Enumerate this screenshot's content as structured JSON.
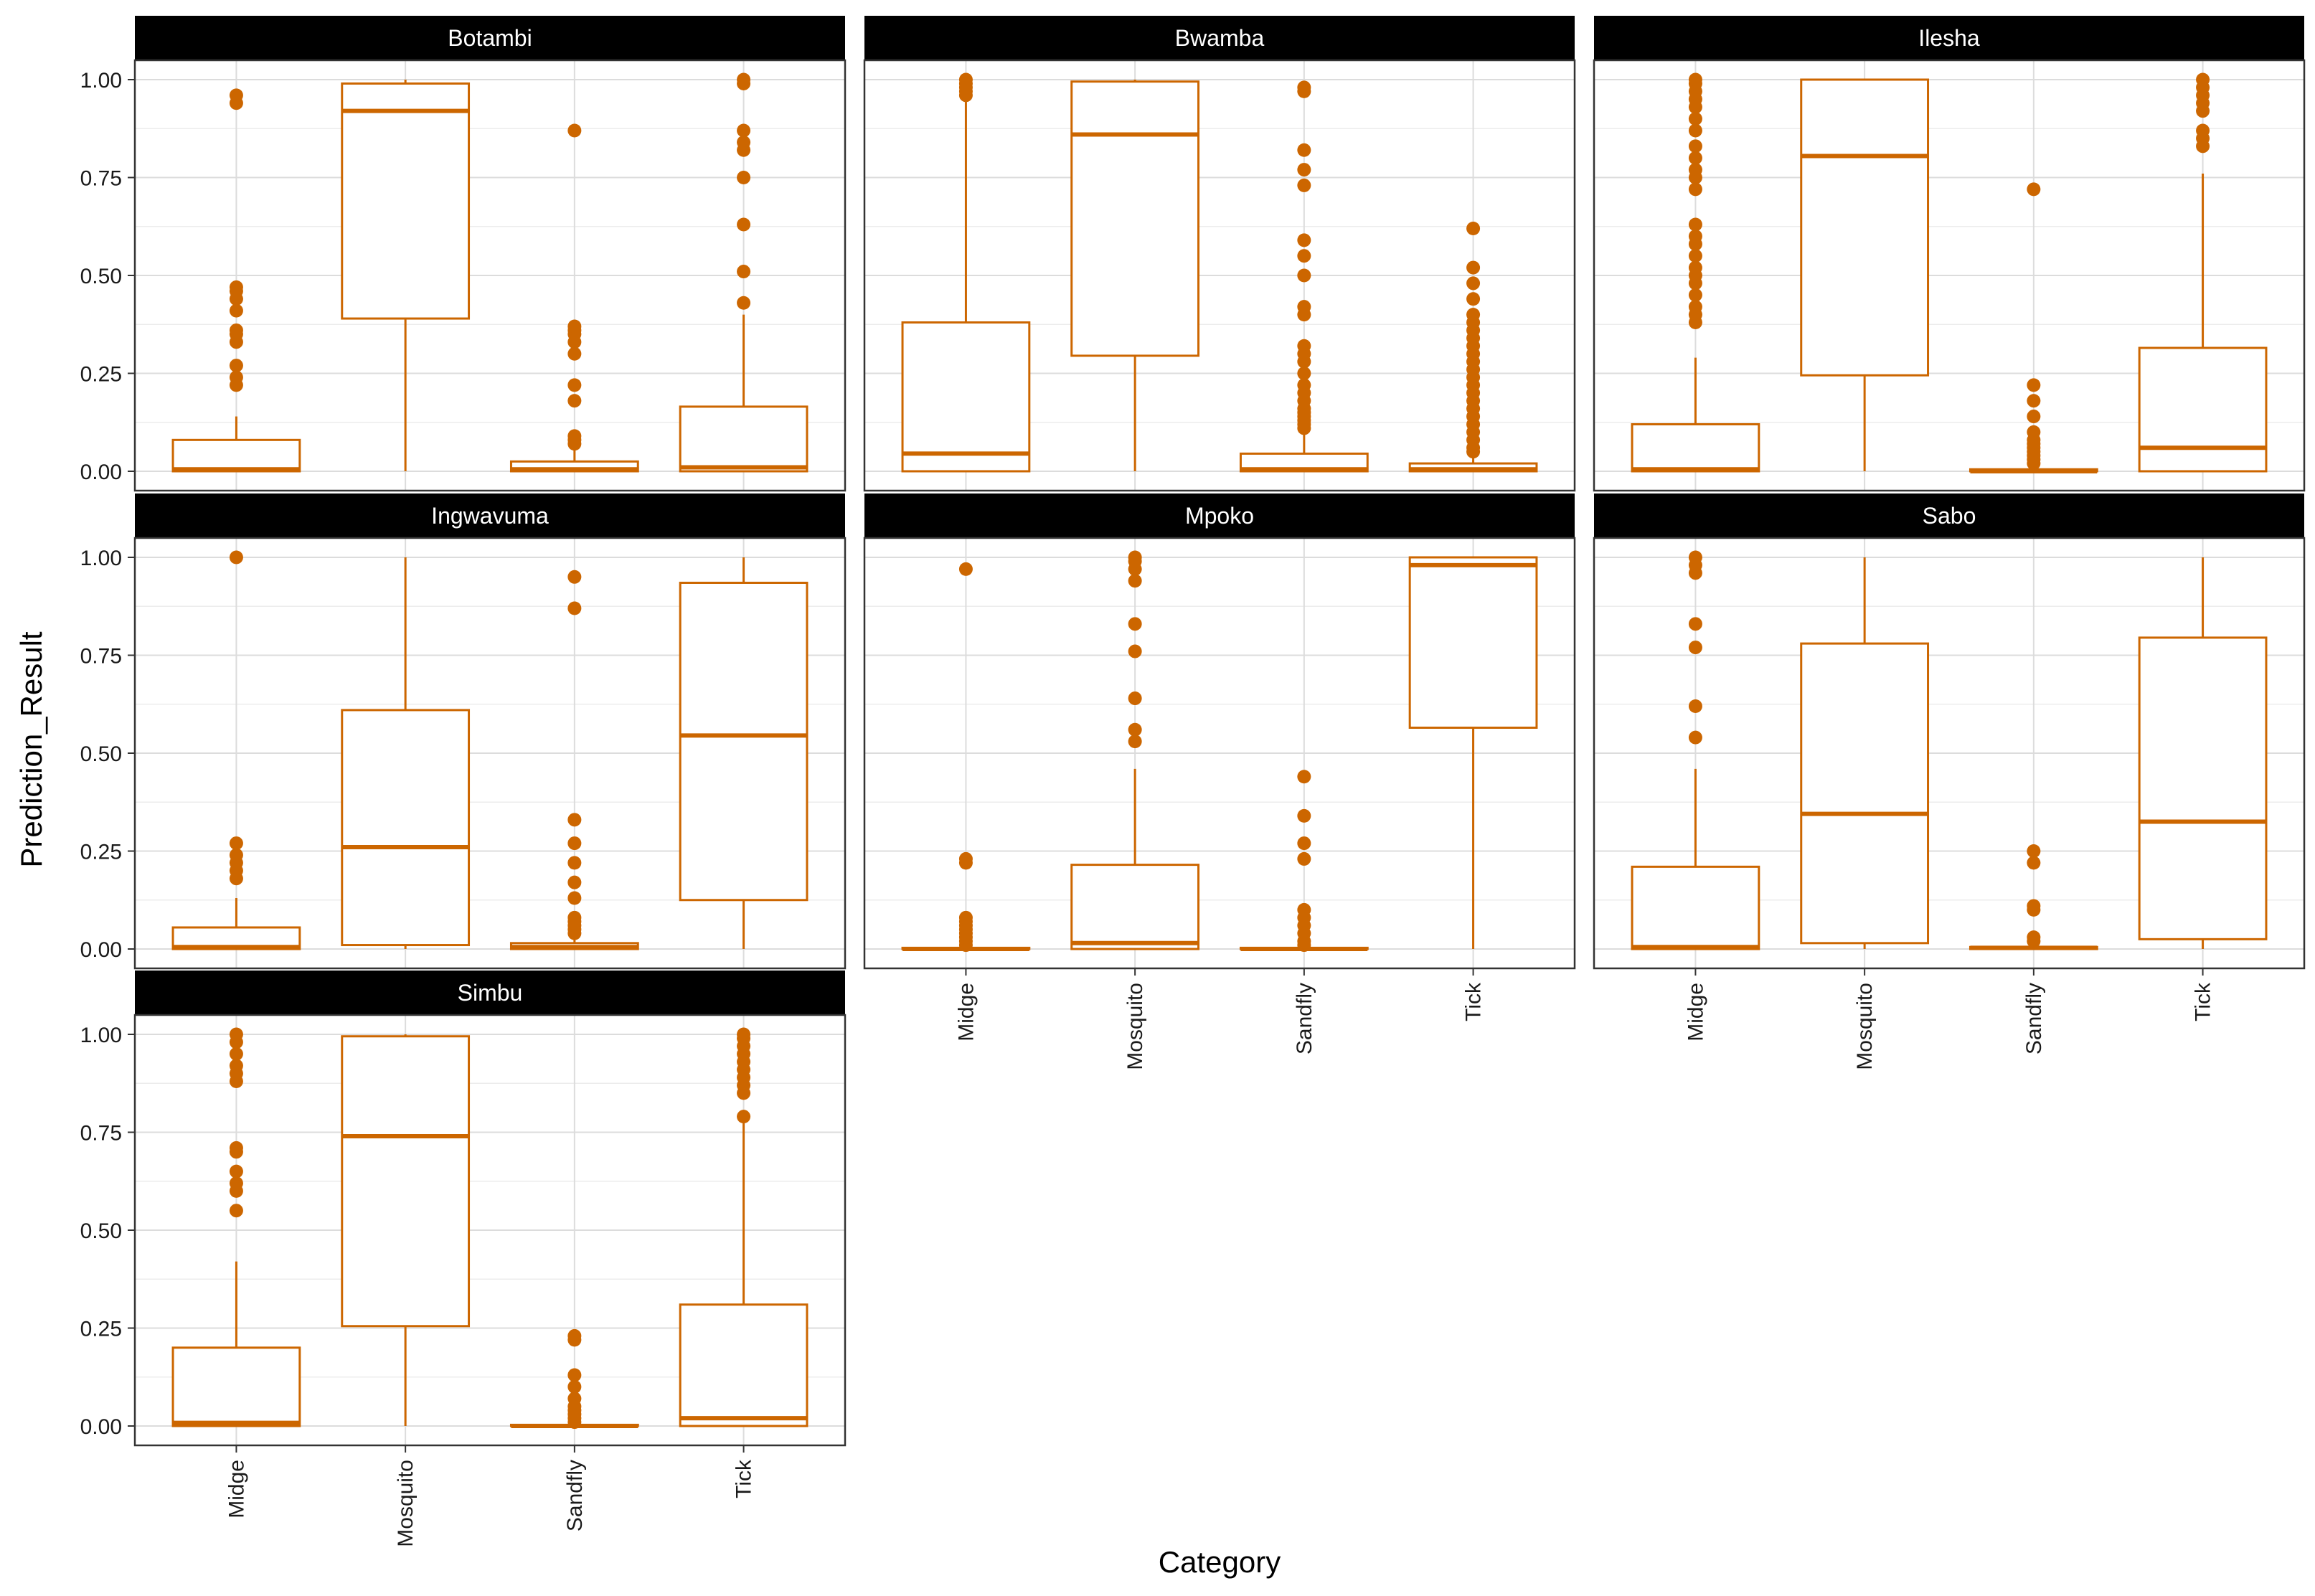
{
  "chart_data": {
    "type": "boxplot",
    "facet_layout": "3 columns, facets wrapped into 3 rows",
    "xlabel": "Category",
    "ylabel": "Prediction_Result",
    "ylim": [
      0,
      1
    ],
    "y_ticks": [
      "0.00",
      "0.25",
      "0.50",
      "0.75",
      "1.00"
    ],
    "y_tick_values": [
      0,
      0.25,
      0.5,
      0.75,
      1
    ],
    "categories": [
      "Midge",
      "Mosquito",
      "Sandfly",
      "Tick"
    ],
    "color": "#cc6600",
    "grid": true,
    "facets": [
      {
        "name": "Botambi",
        "boxes": [
          {
            "category": "Midge",
            "q1": 0.0,
            "median": 0.005,
            "q3": 0.08,
            "whisker_low": 0.0,
            "whisker_high": 0.14,
            "outliers": [
              0.22,
              0.24,
              0.27,
              0.33,
              0.35,
              0.36,
              0.41,
              0.44,
              0.46,
              0.47,
              0.94,
              0.96
            ]
          },
          {
            "category": "Mosquito",
            "q1": 0.39,
            "median": 0.92,
            "q3": 0.99,
            "whisker_low": 0.0,
            "whisker_high": 1.0,
            "outliers": []
          },
          {
            "category": "Sandfly",
            "q1": 0.0,
            "median": 0.005,
            "q3": 0.025,
            "whisker_low": 0.0,
            "whisker_high": 0.06,
            "outliers": [
              0.07,
              0.08,
              0.09,
              0.18,
              0.22,
              0.3,
              0.33,
              0.35,
              0.36,
              0.37,
              0.87
            ]
          },
          {
            "category": "Tick",
            "q1": 0.0,
            "median": 0.01,
            "q3": 0.165,
            "whisker_low": 0.0,
            "whisker_high": 0.4,
            "outliers": [
              0.43,
              0.51,
              0.63,
              0.75,
              0.82,
              0.84,
              0.87,
              0.99,
              1.0
            ]
          }
        ]
      },
      {
        "name": "Bwamba",
        "boxes": [
          {
            "category": "Midge",
            "q1": 0.0,
            "median": 0.045,
            "q3": 0.38,
            "whisker_low": 0.0,
            "whisker_high": 0.95,
            "outliers": [
              0.96,
              0.97,
              0.98,
              0.99,
              1.0
            ]
          },
          {
            "category": "Mosquito",
            "q1": 0.295,
            "median": 0.86,
            "q3": 0.995,
            "whisker_low": 0.0,
            "whisker_high": 1.0,
            "outliers": []
          },
          {
            "category": "Sandfly",
            "q1": 0.0,
            "median": 0.005,
            "q3": 0.045,
            "whisker_low": 0.0,
            "whisker_high": 0.1,
            "outliers": [
              0.11,
              0.12,
              0.13,
              0.14,
              0.15,
              0.16,
              0.18,
              0.2,
              0.22,
              0.25,
              0.28,
              0.3,
              0.32,
              0.4,
              0.42,
              0.5,
              0.55,
              0.59,
              0.73,
              0.77,
              0.82,
              0.97,
              0.98
            ]
          },
          {
            "category": "Tick",
            "q1": 0.0,
            "median": 0.005,
            "q3": 0.02,
            "whisker_low": 0.0,
            "whisker_high": 0.04,
            "outliers": [
              0.05,
              0.06,
              0.08,
              0.1,
              0.12,
              0.14,
              0.16,
              0.18,
              0.2,
              0.22,
              0.24,
              0.26,
              0.28,
              0.3,
              0.32,
              0.34,
              0.36,
              0.38,
              0.4,
              0.44,
              0.48,
              0.52,
              0.62
            ]
          }
        ]
      },
      {
        "name": "Ilesha",
        "boxes": [
          {
            "category": "Midge",
            "q1": 0.0,
            "median": 0.005,
            "q3": 0.12,
            "whisker_low": 0.0,
            "whisker_high": 0.29,
            "outliers": [
              0.38,
              0.4,
              0.42,
              0.45,
              0.48,
              0.5,
              0.52,
              0.55,
              0.58,
              0.6,
              0.63,
              0.72,
              0.75,
              0.77,
              0.8,
              0.83,
              0.87,
              0.9,
              0.93,
              0.95,
              0.97,
              0.99,
              1.0
            ]
          },
          {
            "category": "Mosquito",
            "q1": 0.245,
            "median": 0.805,
            "q3": 1.0,
            "whisker_low": 0.0,
            "whisker_high": 1.0,
            "outliers": []
          },
          {
            "category": "Sandfly",
            "q1": 0.0,
            "median": 0.0,
            "q3": 0.005,
            "whisker_low": 0.0,
            "whisker_high": 0.01,
            "outliers": [
              0.02,
              0.03,
              0.04,
              0.05,
              0.06,
              0.07,
              0.08,
              0.1,
              0.14,
              0.18,
              0.22,
              0.72
            ]
          },
          {
            "category": "Tick",
            "q1": 0.0,
            "median": 0.06,
            "q3": 0.315,
            "whisker_low": 0.0,
            "whisker_high": 0.76,
            "outliers": [
              0.83,
              0.85,
              0.87,
              0.92,
              0.94,
              0.96,
              0.98,
              1.0
            ]
          }
        ]
      },
      {
        "name": "Ingwavuma",
        "boxes": [
          {
            "category": "Midge",
            "q1": 0.0,
            "median": 0.005,
            "q3": 0.055,
            "whisker_low": 0.0,
            "whisker_high": 0.13,
            "outliers": [
              0.18,
              0.2,
              0.22,
              0.24,
              0.27,
              1.0
            ]
          },
          {
            "category": "Mosquito",
            "q1": 0.01,
            "median": 0.26,
            "q3": 0.61,
            "whisker_low": 0.0,
            "whisker_high": 1.0,
            "outliers": []
          },
          {
            "category": "Sandfly",
            "q1": 0.0,
            "median": 0.005,
            "q3": 0.015,
            "whisker_low": 0.0,
            "whisker_high": 0.03,
            "outliers": [
              0.04,
              0.05,
              0.06,
              0.07,
              0.08,
              0.13,
              0.17,
              0.22,
              0.27,
              0.33,
              0.87,
              0.95
            ]
          },
          {
            "category": "Tick",
            "q1": 0.125,
            "median": 0.545,
            "q3": 0.935,
            "whisker_low": 0.0,
            "whisker_high": 1.0,
            "outliers": []
          }
        ]
      },
      {
        "name": "Mpoko",
        "boxes": [
          {
            "category": "Midge",
            "q1": 0.0,
            "median": 0.0,
            "q3": 0.003,
            "whisker_low": 0.0,
            "whisker_high": 0.005,
            "outliers": [
              0.01,
              0.02,
              0.03,
              0.04,
              0.05,
              0.06,
              0.07,
              0.08,
              0.22,
              0.23,
              0.97
            ]
          },
          {
            "category": "Mosquito",
            "q1": 0.0,
            "median": 0.015,
            "q3": 0.215,
            "whisker_low": 0.0,
            "whisker_high": 0.46,
            "outliers": [
              0.53,
              0.56,
              0.64,
              0.76,
              0.83,
              0.94,
              0.97,
              0.99,
              1.0
            ]
          },
          {
            "category": "Sandfly",
            "q1": 0.0,
            "median": 0.0,
            "q3": 0.003,
            "whisker_low": 0.0,
            "whisker_high": 0.005,
            "outliers": [
              0.01,
              0.02,
              0.04,
              0.06,
              0.08,
              0.1,
              0.23,
              0.27,
              0.34,
              0.44
            ]
          },
          {
            "category": "Tick",
            "q1": 0.565,
            "median": 0.98,
            "q3": 1.0,
            "whisker_low": 0.0,
            "whisker_high": 1.0,
            "outliers": []
          }
        ]
      },
      {
        "name": "Sabo",
        "boxes": [
          {
            "category": "Midge",
            "q1": 0.0,
            "median": 0.005,
            "q3": 0.21,
            "whisker_low": 0.0,
            "whisker_high": 0.46,
            "outliers": [
              0.54,
              0.62,
              0.77,
              0.83,
              0.96,
              0.98,
              1.0
            ]
          },
          {
            "category": "Mosquito",
            "q1": 0.015,
            "median": 0.345,
            "q3": 0.78,
            "whisker_low": 0.0,
            "whisker_high": 1.0,
            "outliers": []
          },
          {
            "category": "Sandfly",
            "q1": 0.0,
            "median": 0.003,
            "q3": 0.005,
            "whisker_low": 0.0,
            "whisker_high": 0.01,
            "outliers": [
              0.02,
              0.03,
              0.1,
              0.11,
              0.22,
              0.25
            ]
          },
          {
            "category": "Tick",
            "q1": 0.025,
            "median": 0.325,
            "q3": 0.795,
            "whisker_low": 0.0,
            "whisker_high": 1.0,
            "outliers": []
          }
        ]
      },
      {
        "name": "Simbu",
        "boxes": [
          {
            "category": "Midge",
            "q1": 0.0,
            "median": 0.008,
            "q3": 0.2,
            "whisker_low": 0.0,
            "whisker_high": 0.42,
            "outliers": [
              0.55,
              0.6,
              0.62,
              0.65,
              0.7,
              0.71,
              0.88,
              0.9,
              0.92,
              0.95,
              0.98,
              1.0
            ]
          },
          {
            "category": "Mosquito",
            "q1": 0.255,
            "median": 0.74,
            "q3": 0.995,
            "whisker_low": 0.0,
            "whisker_high": 1.0,
            "outliers": []
          },
          {
            "category": "Sandfly",
            "q1": 0.0,
            "median": 0.0,
            "q3": 0.003,
            "whisker_low": 0.0,
            "whisker_high": 0.005,
            "outliers": [
              0.01,
              0.02,
              0.03,
              0.04,
              0.05,
              0.07,
              0.1,
              0.13,
              0.22,
              0.23
            ]
          },
          {
            "category": "Tick",
            "q1": 0.0,
            "median": 0.02,
            "q3": 0.31,
            "whisker_low": 0.0,
            "whisker_high": 0.78,
            "outliers": [
              0.79,
              0.85,
              0.87,
              0.89,
              0.91,
              0.93,
              0.95,
              0.97,
              0.99,
              1.0
            ]
          }
        ]
      }
    ]
  }
}
